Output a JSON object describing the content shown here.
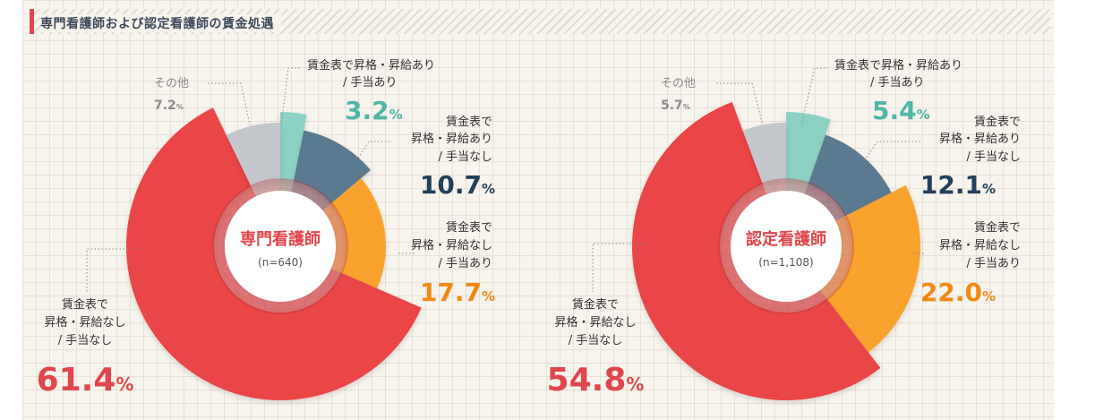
{
  "title": "専門看護師および認定看護師の賃金処遇",
  "colors": {
    "accent": "#e0474c",
    "teal": "#8dd1c5",
    "slate": "#5a7a90",
    "orange": "#f9a22e",
    "red": "#ea4447",
    "grey": "#c3c7cc"
  },
  "chart_data": [
    {
      "type": "pie",
      "title": "専門看護師",
      "n_label": "(n=640)",
      "unit": "%",
      "slices": [
        {
          "label": "賃金表で昇格・昇給あり/手当あり",
          "label_lines": [
            "賃金表で昇格・昇給あり",
            "/ 手当あり"
          ],
          "value": 3.2,
          "value_text": "3.2",
          "color": "#8dd1c5"
        },
        {
          "label": "賃金表で昇格・昇給あり/手当なし",
          "label_lines": [
            "賃金表で",
            "昇格・昇給あり",
            "/ 手当なし"
          ],
          "value": 10.7,
          "value_text": "10.7",
          "color": "#5a7a90"
        },
        {
          "label": "賃金表で昇格・昇給なし/手当あり",
          "label_lines": [
            "賃金表で",
            "昇格・昇給なし",
            "/ 手当あり"
          ],
          "value": 17.7,
          "value_text": "17.7",
          "color": "#f9a22e"
        },
        {
          "label": "賃金表で昇格・昇給なし/手当なし",
          "label_lines": [
            "賃金表で",
            "昇格・昇給なし",
            "/ 手当なし"
          ],
          "value": 61.4,
          "value_text": "61.4",
          "color": "#ea4447"
        },
        {
          "label": "その他",
          "label_lines": [
            "その他"
          ],
          "value": 7.2,
          "value_text": "7.2",
          "color": "#c3c7cc"
        }
      ]
    },
    {
      "type": "pie",
      "title": "認定看護師",
      "n_label": "(n=1,108)",
      "unit": "%",
      "slices": [
        {
          "label": "賃金表で昇格・昇給あり/手当あり",
          "label_lines": [
            "賃金表で昇格・昇給あり",
            "/ 手当あり"
          ],
          "value": 5.4,
          "value_text": "5.4",
          "color": "#8dd1c5"
        },
        {
          "label": "賃金表で昇格・昇給あり/手当なし",
          "label_lines": [
            "賃金表で",
            "昇格・昇給あり",
            "/ 手当なし"
          ],
          "value": 12.1,
          "value_text": "12.1",
          "color": "#5a7a90"
        },
        {
          "label": "賃金表で昇格・昇給なし/手当あり",
          "label_lines": [
            "賃金表で",
            "昇格・昇給なし",
            "/ 手当あり"
          ],
          "value": 22.0,
          "value_text": "22.0",
          "color": "#f9a22e"
        },
        {
          "label": "賃金表で昇格・昇給なし/手当なし",
          "label_lines": [
            "賃金表で",
            "昇格・昇給なし",
            "/ 手当なし"
          ],
          "value": 54.8,
          "value_text": "54.8",
          "color": "#ea4447"
        },
        {
          "label": "その他",
          "label_lines": [
            "その他"
          ],
          "value": 5.7,
          "value_text": "5.7",
          "color": "#c3c7cc"
        }
      ]
    }
  ]
}
